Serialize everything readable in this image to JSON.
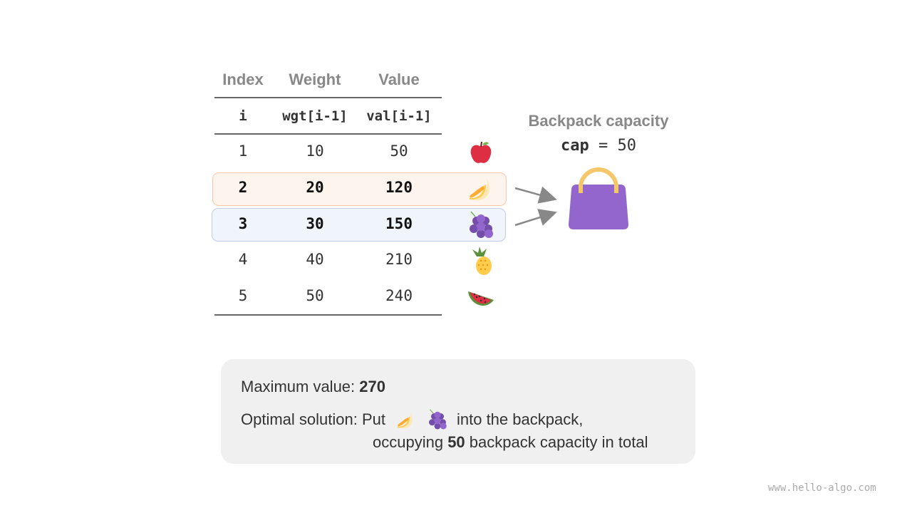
{
  "table": {
    "headers": [
      "Index",
      "Weight",
      "Value"
    ],
    "subheaders": [
      "i",
      "wgt[i-1]",
      "val[i-1]"
    ],
    "rows": [
      {
        "i": "1",
        "wgt": "10",
        "val": "50",
        "fruit": "apple-icon"
      },
      {
        "i": "2",
        "wgt": "20",
        "val": "120",
        "fruit": "banana-icon",
        "highlight": "#fdf4ee"
      },
      {
        "i": "3",
        "wgt": "30",
        "val": "150",
        "fruit": "grapes-icon",
        "highlight": "#f0f4fb"
      },
      {
        "i": "4",
        "wgt": "40",
        "val": "210",
        "fruit": "pineapple-icon"
      },
      {
        "i": "5",
        "wgt": "50",
        "val": "240",
        "fruit": "watermelon-icon"
      }
    ]
  },
  "backpack": {
    "title": "Backpack capacity",
    "var": "cap",
    "eq": " = 50",
    "color": "#9266cc",
    "handle_color": "#f6c66a"
  },
  "summary": {
    "max_label": "Maximum value: ",
    "max_value": "270",
    "opt_label": "Optimal solution: Put",
    "opt_tail": "into the backpack,",
    "occ_pre": "occupying ",
    "occ_value": "50",
    "occ_post": " backpack capacity in total"
  },
  "watermark": "www.hello-algo.com"
}
